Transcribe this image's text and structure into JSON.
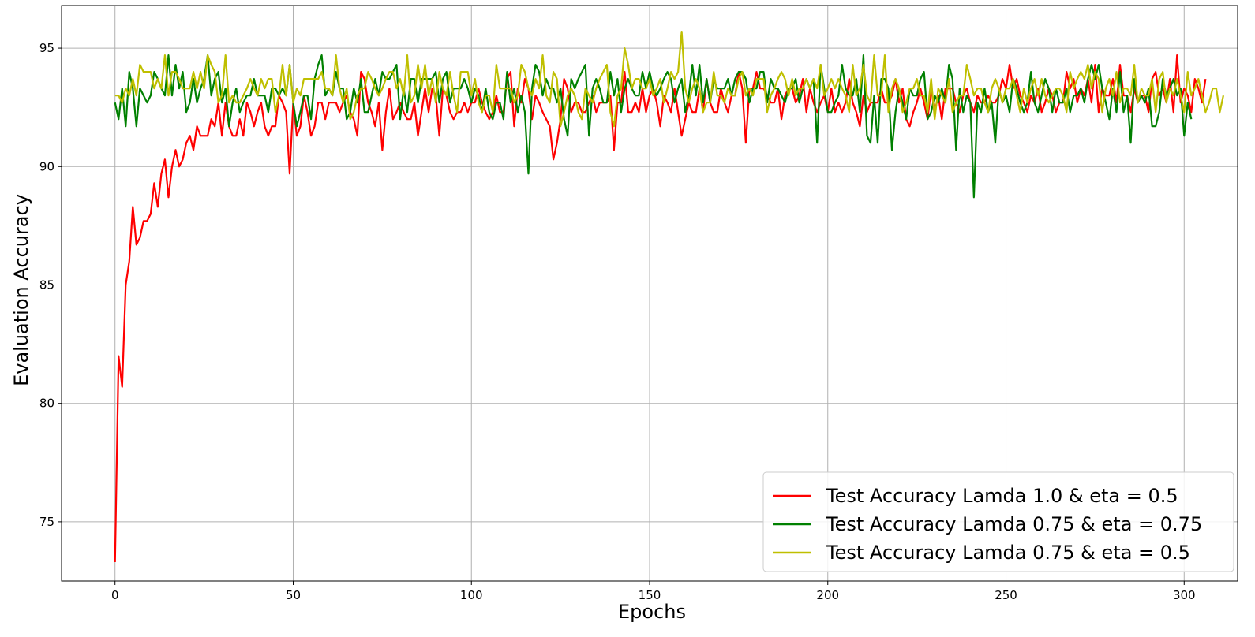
{
  "chart_data": {
    "type": "line",
    "title": "",
    "xlabel": "Epochs",
    "ylabel": "Evaluation Accuracy",
    "xlim": [
      -15,
      315
    ],
    "ylim": [
      72.5,
      96.8
    ],
    "xticks": [
      0,
      50,
      100,
      150,
      200,
      250,
      300
    ],
    "yticks": [
      75,
      80,
      85,
      90,
      95
    ],
    "xtick_labels": [
      "0",
      "50",
      "100",
      "150",
      "200",
      "250",
      "300"
    ],
    "ytick_labels": [
      "75",
      "80",
      "85",
      "90",
      "95"
    ],
    "grid": true,
    "legend_position": "lower-right",
    "series": [
      {
        "name": "Test Accuracy Lamda 1.0 & eta = 0.5",
        "color": "#ff0000",
        "x_start": 0,
        "values": [
          73.3,
          82.0,
          80.7,
          85.0,
          86.0,
          88.3,
          86.7,
          87.0,
          87.7,
          87.7,
          88.0,
          89.3,
          88.3,
          89.7,
          90.3,
          88.7,
          90.0,
          90.7,
          90.0,
          90.3,
          91.0,
          91.3,
          90.7,
          91.7,
          91.3,
          91.3,
          91.3,
          92.0,
          91.7,
          92.7,
          91.3,
          92.7,
          91.7,
          91.3,
          91.3,
          92.0,
          91.3,
          92.7,
          92.3,
          91.7,
          92.3,
          92.7,
          91.7,
          91.3,
          91.7,
          91.7,
          93.0,
          92.7,
          92.3,
          89.7,
          92.7,
          91.3,
          91.7,
          93.0,
          92.3,
          91.3,
          91.7,
          92.7,
          92.7,
          92.0,
          92.7,
          92.7,
          92.7,
          92.3,
          92.7,
          93.0,
          92.3,
          92.0,
          91.3,
          94.0,
          93.7,
          92.7,
          92.3,
          91.7,
          92.7,
          90.7,
          92.3,
          93.3,
          92.0,
          92.3,
          92.7,
          92.3,
          92.0,
          92.0,
          92.7,
          91.3,
          92.3,
          93.3,
          92.3,
          93.3,
          93.0,
          91.3,
          93.3,
          93.0,
          92.3,
          92.0,
          92.3,
          92.3,
          92.7,
          92.3,
          92.7,
          92.7,
          93.3,
          92.7,
          92.3,
          92.0,
          92.3,
          93.0,
          92.3,
          92.3,
          93.7,
          94.0,
          91.7,
          93.3,
          92.7,
          93.7,
          93.3,
          92.0,
          93.0,
          92.7,
          92.3,
          92.0,
          91.7,
          90.3,
          91.0,
          92.0,
          93.7,
          93.3,
          92.3,
          92.7,
          92.7,
          92.3,
          92.3,
          92.7,
          93.0,
          92.3,
          92.7,
          92.7,
          92.7,
          93.0,
          90.7,
          92.7,
          92.7,
          94.0,
          92.3,
          92.3,
          92.7,
          92.3,
          93.3,
          92.3,
          93.0,
          93.3,
          92.7,
          91.7,
          93.0,
          92.7,
          92.3,
          93.3,
          92.3,
          91.3,
          92.0,
          92.7,
          92.3,
          92.3,
          93.3,
          92.3,
          93.7,
          92.7,
          92.3,
          92.3,
          93.3,
          92.7,
          92.3,
          93.0,
          93.0,
          94.0,
          93.3,
          91.0,
          93.3,
          93.3,
          94.0,
          93.3,
          93.3,
          93.0,
          92.7,
          92.7,
          93.3,
          92.0,
          93.0,
          93.3,
          93.3,
          92.7,
          93.0,
          93.7,
          92.3,
          93.3,
          92.7,
          92.3,
          92.7,
          93.0,
          92.3,
          93.3,
          92.3,
          92.7,
          92.3,
          92.7,
          93.7,
          92.7,
          92.3,
          91.7,
          93.0,
          92.3,
          92.7,
          92.7,
          92.7,
          93.3,
          92.7,
          92.7,
          93.0,
          93.7,
          92.7,
          93.3,
          92.0,
          91.7,
          92.3,
          92.7,
          93.3,
          92.7,
          92.0,
          93.3,
          92.3,
          93.0,
          92.0,
          93.3,
          93.3,
          93.3,
          92.7,
          92.3,
          93.0,
          93.3,
          92.7,
          92.3,
          93.0,
          92.7,
          92.7,
          93.0,
          92.7,
          92.7,
          93.0,
          93.7,
          93.3,
          94.3,
          93.3,
          93.7,
          93.0,
          92.7,
          92.3,
          93.0,
          92.7,
          93.3,
          92.3,
          92.7,
          93.3,
          93.0,
          92.3,
          92.7,
          92.7,
          94.0,
          93.3,
          93.7,
          92.7,
          93.3,
          93.0,
          93.7,
          92.7,
          94.3,
          92.3,
          93.3,
          93.0,
          93.0,
          93.7,
          92.7,
          94.3,
          93.0,
          93.0,
          92.3,
          93.3,
          92.7,
          93.0,
          93.0,
          92.3,
          93.7,
          94.0,
          93.0,
          93.3,
          92.7,
          93.7,
          92.3,
          94.7,
          92.7,
          93.3,
          93.0,
          92.3,
          93.7,
          93.3,
          92.7,
          93.7
        ]
      },
      {
        "name": "Test Accuracy Lamda 0.75 & eta = 0.75",
        "color": "#008000",
        "x_start": 0,
        "values": [
          92.7,
          92.0,
          93.3,
          91.7,
          94.0,
          93.3,
          91.7,
          93.3,
          93.0,
          92.7,
          93.0,
          94.0,
          93.7,
          93.3,
          93.0,
          94.7,
          93.0,
          94.3,
          93.3,
          94.0,
          92.3,
          92.7,
          93.7,
          92.7,
          93.3,
          93.7,
          94.7,
          93.0,
          93.7,
          94.0,
          92.7,
          93.3,
          91.7,
          92.7,
          93.3,
          92.3,
          92.7,
          93.0,
          93.0,
          93.7,
          93.0,
          93.0,
          93.0,
          92.3,
          93.3,
          93.3,
          93.0,
          93.3,
          93.0,
          94.3,
          92.7,
          91.7,
          92.3,
          93.0,
          93.0,
          92.0,
          93.7,
          94.3,
          94.7,
          93.0,
          93.3,
          93.0,
          94.0,
          93.3,
          93.3,
          92.0,
          92.3,
          93.3,
          92.7,
          93.7,
          92.3,
          92.3,
          93.0,
          93.7,
          93.0,
          94.0,
          93.7,
          93.7,
          94.0,
          94.3,
          92.0,
          93.3,
          92.3,
          93.7,
          93.7,
          92.7,
          93.7,
          93.7,
          93.7,
          93.7,
          94.0,
          92.7,
          93.7,
          94.0,
          92.7,
          93.3,
          93.3,
          93.3,
          93.7,
          93.3,
          92.7,
          93.3,
          93.0,
          92.3,
          93.3,
          92.3,
          92.0,
          92.7,
          92.7,
          92.0,
          94.0,
          92.7,
          93.3,
          92.3,
          93.0,
          92.3,
          89.7,
          93.3,
          94.3,
          94.0,
          93.0,
          93.7,
          93.3,
          93.3,
          92.7,
          93.3,
          92.0,
          91.3,
          93.7,
          93.3,
          93.7,
          94.0,
          94.3,
          91.3,
          93.3,
          93.7,
          93.3,
          92.7,
          92.7,
          94.0,
          93.0,
          93.7,
          92.3,
          93.3,
          93.7,
          93.3,
          93.0,
          93.0,
          94.0,
          93.3,
          94.0,
          93.3,
          93.0,
          93.3,
          93.7,
          94.0,
          93.7,
          92.7,
          93.3,
          93.7,
          92.3,
          93.0,
          94.3,
          93.0,
          94.3,
          92.7,
          93.7,
          92.7,
          93.7,
          93.3,
          93.3,
          93.3,
          93.7,
          93.0,
          93.7,
          94.0,
          94.0,
          93.7,
          92.7,
          93.3,
          93.3,
          94.0,
          94.0,
          92.7,
          93.7,
          93.3,
          93.3,
          93.0,
          92.7,
          93.3,
          93.3,
          93.7,
          92.7,
          93.3,
          93.7,
          93.3,
          93.7,
          91.0,
          94.3,
          93.3,
          92.3,
          92.3,
          92.7,
          93.0,
          94.3,
          93.3,
          93.0,
          93.0,
          93.7,
          92.3,
          94.7,
          91.3,
          91.0,
          93.0,
          91.0,
          93.7,
          93.7,
          93.3,
          90.7,
          92.3,
          93.3,
          92.7,
          92.0,
          93.3,
          93.0,
          93.0,
          93.7,
          94.0,
          92.0,
          92.3,
          93.0,
          92.7,
          93.3,
          92.7,
          94.3,
          93.7,
          90.7,
          93.3,
          92.3,
          93.0,
          92.7,
          88.7,
          92.7,
          92.3,
          93.3,
          92.3,
          92.7,
          91.0,
          93.3,
          92.7,
          93.0,
          92.3,
          93.7,
          93.3,
          92.7,
          92.3,
          92.7,
          94.0,
          92.7,
          92.3,
          93.0,
          93.7,
          93.3,
          92.3,
          93.3,
          92.7,
          92.7,
          93.3,
          92.3,
          93.0,
          93.0,
          93.3,
          92.7,
          93.7,
          94.3,
          93.7,
          94.3,
          93.3,
          92.7,
          92.0,
          93.3,
          92.3,
          94.0,
          92.3,
          93.0,
          91.0,
          93.7,
          92.7,
          93.0,
          92.7,
          93.3,
          91.7,
          91.7,
          92.3,
          93.7,
          93.0,
          93.3,
          93.7,
          93.0,
          93.3,
          91.3,
          92.7,
          92.0
        ]
      },
      {
        "name": "Test Accuracy Lamda 0.75 & eta = 0.5",
        "color": "#bfbf00",
        "x_start": 0,
        "values": [
          93.0,
          93.0,
          92.7,
          93.3,
          93.0,
          93.7,
          93.0,
          94.3,
          94.0,
          94.0,
          94.0,
          93.3,
          93.7,
          93.3,
          94.7,
          93.0,
          94.0,
          94.0,
          93.7,
          93.3,
          93.3,
          93.3,
          94.0,
          93.3,
          94.0,
          93.3,
          94.7,
          94.3,
          94.0,
          92.7,
          93.0,
          94.7,
          92.7,
          93.0,
          92.7,
          92.7,
          93.0,
          93.3,
          93.7,
          93.3,
          93.0,
          93.7,
          93.3,
          93.7,
          93.7,
          92.3,
          93.0,
          94.3,
          93.0,
          94.3,
          92.7,
          93.3,
          93.0,
          93.7,
          93.7,
          93.7,
          93.7,
          93.7,
          94.0,
          93.3,
          93.3,
          93.0,
          94.7,
          93.3,
          92.7,
          93.3,
          92.0,
          92.3,
          93.0,
          93.3,
          93.3,
          94.0,
          93.7,
          93.3,
          93.0,
          93.3,
          93.7,
          94.0,
          94.0,
          93.3,
          93.7,
          93.0,
          94.7,
          92.7,
          93.0,
          94.3,
          93.3,
          94.3,
          93.0,
          93.7,
          92.7,
          94.0,
          93.3,
          93.0,
          94.0,
          93.0,
          92.3,
          94.0,
          94.0,
          94.0,
          93.0,
          93.7,
          92.7,
          92.3,
          93.0,
          93.0,
          92.3,
          94.3,
          93.3,
          93.3,
          93.3,
          93.3,
          92.7,
          93.0,
          94.3,
          94.0,
          93.3,
          93.0,
          93.7,
          93.3,
          94.7,
          93.0,
          92.7,
          94.0,
          93.7,
          91.7,
          92.3,
          93.0,
          93.3,
          93.0,
          92.3,
          92.0,
          93.3,
          93.0,
          92.7,
          93.3,
          93.7,
          94.0,
          94.3,
          92.3,
          91.7,
          93.0,
          93.3,
          95.0,
          94.3,
          93.3,
          93.7,
          93.7,
          93.3,
          93.3,
          93.7,
          93.0,
          93.3,
          93.7,
          92.7,
          93.3,
          94.0,
          93.7,
          94.0,
          95.7,
          93.3,
          92.7,
          93.3,
          93.7,
          93.3,
          92.3,
          92.7,
          92.7,
          94.0,
          93.0,
          93.0,
          92.7,
          93.3,
          93.0,
          93.0,
          93.7,
          94.0,
          93.0,
          93.3,
          93.0,
          93.7,
          93.7,
          93.7,
          92.3,
          93.0,
          93.3,
          93.7,
          94.0,
          93.7,
          93.0,
          93.7,
          93.0,
          93.3,
          93.3,
          93.7,
          93.3,
          93.7,
          93.3,
          94.3,
          93.0,
          93.3,
          93.7,
          93.3,
          93.7,
          93.3,
          93.0,
          92.3,
          94.3,
          93.0,
          93.3,
          94.3,
          93.0,
          92.7,
          94.7,
          93.0,
          93.0,
          94.7,
          92.3,
          93.3,
          93.7,
          93.3,
          92.3,
          92.7,
          93.3,
          93.3,
          93.7,
          93.0,
          93.0,
          92.3,
          93.7,
          92.0,
          93.3,
          93.0,
          92.7,
          93.7,
          92.3,
          92.7,
          93.0,
          93.0,
          94.3,
          93.7,
          93.0,
          93.3,
          93.3,
          92.7,
          92.3,
          93.3,
          93.7,
          93.3,
          92.7,
          93.3,
          93.3,
          93.7,
          93.0,
          92.3,
          93.3,
          92.7,
          93.3,
          93.7,
          93.0,
          93.7,
          93.0,
          92.7,
          93.0,
          93.3,
          93.3,
          93.0,
          92.3,
          94.0,
          93.3,
          93.7,
          94.0,
          93.7,
          94.3,
          93.3,
          94.0,
          93.7,
          92.3,
          93.3,
          93.7,
          93.0,
          94.0,
          92.7,
          93.3,
          93.3,
          93.0,
          94.3,
          92.7,
          93.3,
          93.0,
          93.0,
          93.7,
          92.3,
          93.7,
          94.0,
          92.7,
          93.3,
          93.0,
          93.7,
          93.0,
          92.3,
          94.0,
          93.0,
          93.3,
          93.7,
          93.0,
          92.3,
          92.7,
          93.3,
          93.3,
          92.3,
          93.0
        ]
      }
    ]
  }
}
